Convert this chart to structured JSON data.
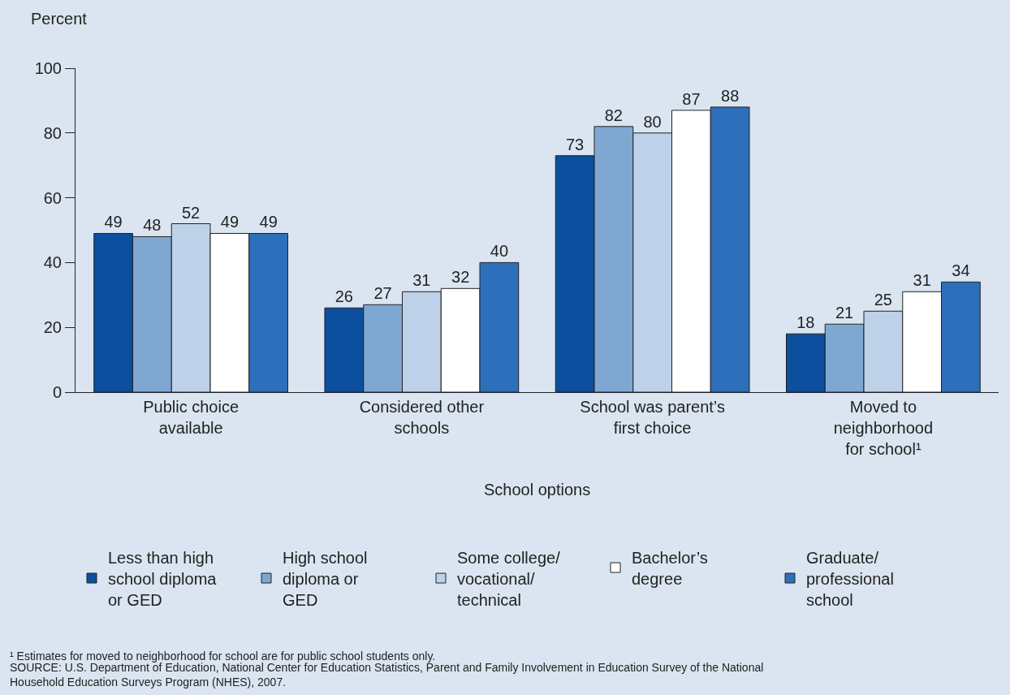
{
  "chart_data": {
    "type": "bar",
    "ylabel": "Percent",
    "xlabel": "School options",
    "categories": [
      "Public choice\navailable",
      "Considered other\nschools",
      "School was parent’s\nfirst choice",
      "Moved to\nneighborhood\nfor school¹"
    ],
    "series": [
      {
        "name": "Less than high\nschool diploma\nor GED",
        "color": "#0b4f9e",
        "values": [
          49,
          26,
          73,
          18
        ]
      },
      {
        "name": "High school\ndiploma or\nGED",
        "color": "#7ea7d2",
        "values": [
          48,
          27,
          82,
          21
        ]
      },
      {
        "name": "Some college/\nvocational/\ntechnical",
        "color": "#bdd1e8",
        "values": [
          52,
          31,
          80,
          25
        ]
      },
      {
        "name": "Bachelor’s\ndegree",
        "color": "#ffffff",
        "values": [
          49,
          32,
          87,
          31
        ]
      },
      {
        "name": "Graduate/\nprofessional\nschool",
        "color": "#2d6fba",
        "values": [
          49,
          40,
          88,
          34
        ]
      }
    ],
    "ylim": [
      0,
      100
    ],
    "yticks": [
      0,
      20,
      40,
      60,
      80,
      100
    ],
    "grid": false,
    "legend": "bottom",
    "data_labels": true,
    "annotations": [
      "¹ Estimates for moved to neighborhood for school are for public school students only.",
      "SOURCE: U.S. Department of Education, National Center for Education Statistics, Parent and Family Involvement in Education Survey of the National\nHousehold Education Surveys Program (NHES), 2007."
    ]
  }
}
